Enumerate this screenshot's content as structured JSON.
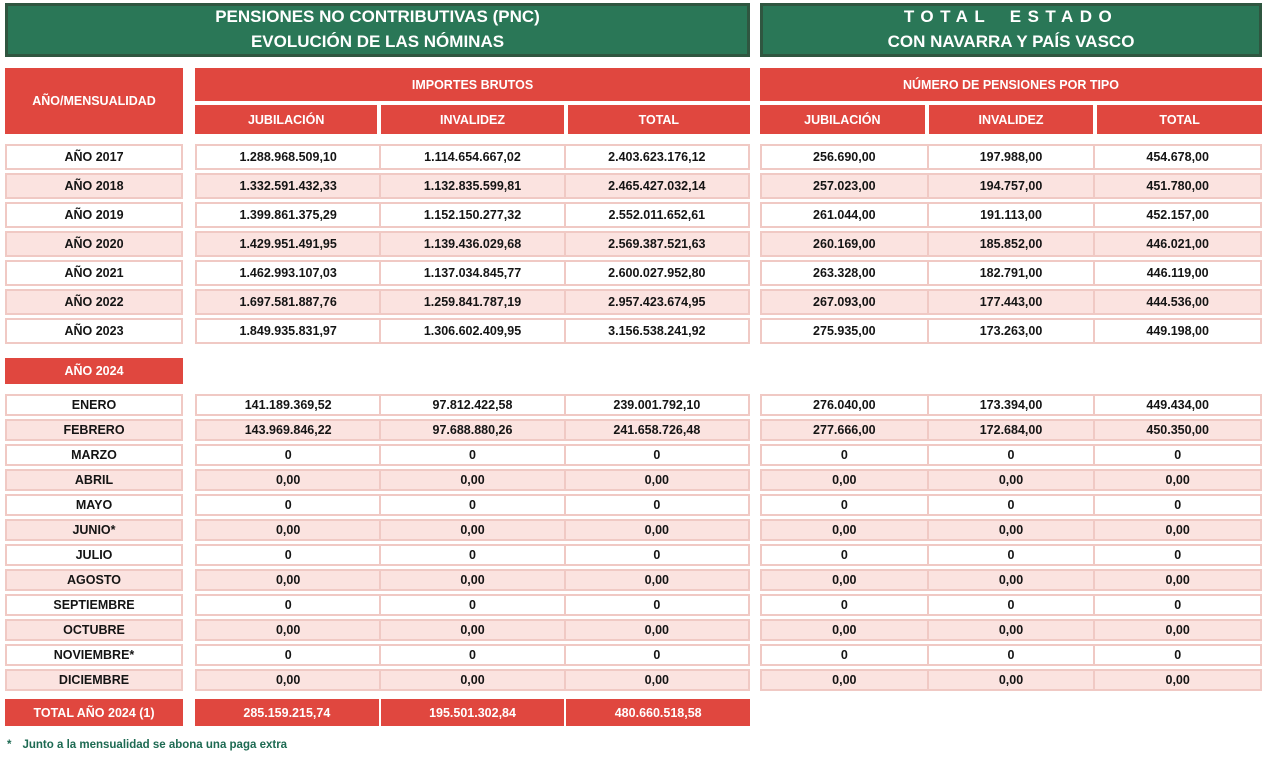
{
  "banners": {
    "left": {
      "line1": "PENSIONES NO CONTRIBUTIVAS (PNC)",
      "line2": "EVOLUCIÓN DE LAS NÓMINAS"
    },
    "right": {
      "line1": "TOTAL ESTADO",
      "line2": "CON NAVARRA Y PAÍS VASCO"
    }
  },
  "header": {
    "row_label": "AÑO/MENSUALIDAD",
    "importes_group": "IMPORTES BRUTOS",
    "pensiones_group": "NÚMERO DE PENSIONES POR TIPO",
    "columns": [
      "JUBILACIÓN",
      "INVALIDEZ",
      "TOTAL"
    ]
  },
  "year_rows": [
    {
      "label": "AÑO 2017",
      "importes": [
        "1.288.968.509,10",
        "1.114.654.667,02",
        "2.403.623.176,12"
      ],
      "pensiones": [
        "256.690,00",
        "197.988,00",
        "454.678,00"
      ]
    },
    {
      "label": "AÑO 2018",
      "importes": [
        "1.332.591.432,33",
        "1.132.835.599,81",
        "2.465.427.032,14"
      ],
      "pensiones": [
        "257.023,00",
        "194.757,00",
        "451.780,00"
      ]
    },
    {
      "label": "AÑO 2019",
      "importes": [
        "1.399.861.375,29",
        "1.152.150.277,32",
        "2.552.011.652,61"
      ],
      "pensiones": [
        "261.044,00",
        "191.113,00",
        "452.157,00"
      ]
    },
    {
      "label": "AÑO 2020",
      "importes": [
        "1.429.951.491,95",
        "1.139.436.029,68",
        "2.569.387.521,63"
      ],
      "pensiones": [
        "260.169,00",
        "185.852,00",
        "446.021,00"
      ]
    },
    {
      "label": "AÑO 2021",
      "importes": [
        "1.462.993.107,03",
        "1.137.034.845,77",
        "2.600.027.952,80"
      ],
      "pensiones": [
        "263.328,00",
        "182.791,00",
        "446.119,00"
      ]
    },
    {
      "label": "AÑO 2022",
      "importes": [
        "1.697.581.887,76",
        "1.259.841.787,19",
        "2.957.423.674,95"
      ],
      "pensiones": [
        "267.093,00",
        "177.443,00",
        "444.536,00"
      ]
    },
    {
      "label": "AÑO 2023",
      "importes": [
        "1.849.935.831,97",
        "1.306.602.409,95",
        "3.156.538.241,92"
      ],
      "pensiones": [
        "275.935,00",
        "173.263,00",
        "449.198,00"
      ]
    }
  ],
  "section_2024": {
    "label": "AÑO 2024"
  },
  "month_rows": [
    {
      "label": "ENERO",
      "importes": [
        "141.189.369,52",
        "97.812.422,58",
        "239.001.792,10"
      ],
      "pensiones": [
        "276.040,00",
        "173.394,00",
        "449.434,00"
      ]
    },
    {
      "label": "FEBRERO",
      "importes": [
        "143.969.846,22",
        "97.688.880,26",
        "241.658.726,48"
      ],
      "pensiones": [
        "277.666,00",
        "172.684,00",
        "450.350,00"
      ]
    },
    {
      "label": "MARZO",
      "importes": [
        "0",
        "0",
        "0"
      ],
      "pensiones": [
        "0",
        "0",
        "0"
      ]
    },
    {
      "label": "ABRIL",
      "importes": [
        "0,00",
        "0,00",
        "0,00"
      ],
      "pensiones": [
        "0,00",
        "0,00",
        "0,00"
      ]
    },
    {
      "label": "MAYO",
      "importes": [
        "0",
        "0",
        "0"
      ],
      "pensiones": [
        "0",
        "0",
        "0"
      ]
    },
    {
      "label": "JUNIO*",
      "importes": [
        "0,00",
        "0,00",
        "0,00"
      ],
      "pensiones": [
        "0,00",
        "0,00",
        "0,00"
      ]
    },
    {
      "label": "JULIO",
      "importes": [
        "0",
        "0",
        "0"
      ],
      "pensiones": [
        "0",
        "0",
        "0"
      ]
    },
    {
      "label": "AGOSTO",
      "importes": [
        "0,00",
        "0,00",
        "0,00"
      ],
      "pensiones": [
        "0,00",
        "0,00",
        "0,00"
      ]
    },
    {
      "label": "SEPTIEMBRE",
      "importes": [
        "0",
        "0",
        "0"
      ],
      "pensiones": [
        "0",
        "0",
        "0"
      ]
    },
    {
      "label": "OCTUBRE",
      "importes": [
        "0,00",
        "0,00",
        "0,00"
      ],
      "pensiones": [
        "0,00",
        "0,00",
        "0,00"
      ]
    },
    {
      "label": "NOVIEMBRE*",
      "importes": [
        "0",
        "0",
        "0"
      ],
      "pensiones": [
        "0",
        "0",
        "0"
      ]
    },
    {
      "label": "DICIEMBRE",
      "importes": [
        "0,00",
        "0,00",
        "0,00"
      ],
      "pensiones": [
        "0,00",
        "0,00",
        "0,00"
      ]
    }
  ],
  "total_row": {
    "label": "TOTAL AÑO 2024 (1)",
    "importes": [
      "285.159.215,74",
      "195.501.302,84",
      "480.660.518,58"
    ]
  },
  "footnote": {
    "marker": "*",
    "text": "Junto a la mensualidad se abona una paga extra"
  },
  "colors": {
    "green": "#2A7757",
    "green_border": "#2F5640",
    "red": "#E0473F",
    "pink_row": "#FBE3E0",
    "pink_border": "#F0C9C4",
    "footnote_green": "#1D6A52"
  }
}
